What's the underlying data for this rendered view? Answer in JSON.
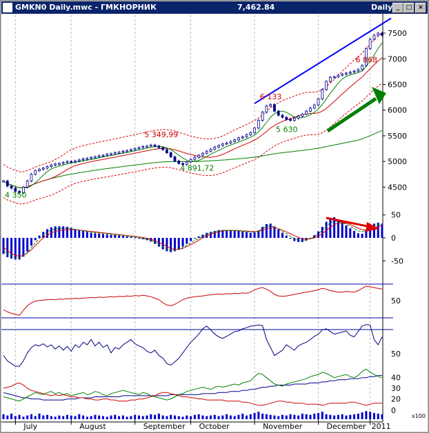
{
  "window": {
    "title": "GMKN0 Daily.mwc - ГМКНОРНИК",
    "last_price": "7,462.84",
    "period": "Daily",
    "buttons": {
      "minimize": "_",
      "maximize": "□",
      "close": "×"
    }
  },
  "colors": {
    "background": "#ffffff",
    "price_bars": "#00008b",
    "trend_line": "#0000ff",
    "ma_fast": "#008000",
    "ma_slow": "#cc0000",
    "band": "#dd0000",
    "ma_long": "#008000",
    "label_high": "#cc0000",
    "label_low": "#008000",
    "arrow_up": "#008000",
    "arrow_down": "#e00000",
    "macd_hist": "#0000cc",
    "volume": "#0000cc"
  },
  "chart_data": {
    "type": "stock",
    "x_ticks": [
      "July",
      "August",
      "September",
      "October",
      "November",
      "December",
      "2011"
    ],
    "price_axis": {
      "ticks": [
        4500,
        5000,
        5500,
        6000,
        6500,
        7000,
        7500
      ],
      "ylim": [
        4250,
        7850
      ]
    },
    "price_labels": [
      {
        "text": "4 350",
        "type": "low"
      },
      {
        "text": "5 349,99",
        "type": "high"
      },
      {
        "text": "4 891,72",
        "type": "low"
      },
      {
        "text": "6 133",
        "type": "high"
      },
      {
        "text": "5 630",
        "type": "low"
      },
      {
        "text": "6 868",
        "type": "high"
      }
    ],
    "price_close": [
      4620,
      4520,
      4480,
      4420,
      4390,
      4500,
      4620,
      4750,
      4820,
      4850,
      4870,
      4900,
      4930,
      4950,
      4960,
      4980,
      5000,
      4990,
      5010,
      5030,
      5050,
      5060,
      5080,
      5090,
      5110,
      5120,
      5140,
      5150,
      5170,
      5180,
      5200,
      5210,
      5230,
      5250,
      5270,
      5290,
      5300,
      5320,
      5300,
      5270,
      5230,
      5170,
      5090,
      5010,
      4960,
      4940,
      4990,
      5040,
      5080,
      5120,
      5160,
      5200,
      5240,
      5280,
      5310,
      5340,
      5360,
      5390,
      5420,
      5460,
      5480,
      5520,
      5560,
      5650,
      5800,
      5960,
      6080,
      6110,
      5980,
      5900,
      5860,
      5820,
      5800,
      5840,
      5880,
      5920,
      5980,
      6040,
      6100,
      6220,
      6400,
      6560,
      6640,
      6650,
      6680,
      6700,
      6720,
      6740,
      6760,
      6790,
      6870,
      7200,
      7380,
      7460,
      7500,
      7460
    ],
    "macd_axis": {
      "ticks": [
        -50,
        0,
        50
      ],
      "ylim": [
        -75,
        75
      ]
    },
    "macd_hist": [
      -35,
      -42,
      -45,
      -47,
      -47,
      -41,
      -30,
      -17,
      -5,
      5,
      13,
      19,
      23,
      25,
      25,
      25,
      24,
      22,
      19,
      17,
      15,
      13,
      11,
      10,
      9,
      8,
      7,
      6,
      6,
      5,
      4,
      3,
      2,
      1,
      -1,
      -3,
      -5,
      -8,
      -13,
      -19,
      -25,
      -29,
      -31,
      -29,
      -25,
      -19,
      -13,
      -7,
      -1,
      3,
      7,
      11,
      13,
      15,
      17,
      17,
      17,
      17,
      16,
      15,
      14,
      13,
      11,
      12,
      16,
      24,
      30,
      31,
      25,
      18,
      11,
      5,
      -2,
      -7,
      -9,
      -9,
      -6,
      -1,
      6,
      14,
      24,
      35,
      42,
      45,
      40,
      33,
      27,
      21,
      15,
      10,
      9,
      16,
      25,
      31,
      33,
      31
    ],
    "macd_signal": [
      -20,
      -28,
      -34,
      -38,
      -40,
      -38,
      -33,
      -26,
      -17,
      -8,
      0,
      6,
      11,
      14,
      16,
      17,
      18,
      18,
      18,
      17,
      16,
      15,
      14,
      13,
      12,
      11,
      10,
      9,
      8,
      7,
      6,
      5,
      4,
      3,
      2,
      1,
      -1,
      -3,
      -6,
      -10,
      -14,
      -19,
      -23,
      -25,
      -25,
      -23,
      -19,
      -15,
      -10,
      -5,
      0,
      4,
      8,
      11,
      13,
      15,
      16,
      16,
      16,
      16,
      15,
      15,
      14,
      14,
      14,
      17,
      20,
      22,
      22,
      20,
      17,
      13,
      9,
      5,
      1,
      -2,
      -3,
      -2,
      0,
      4,
      9,
      16,
      23,
      29,
      32,
      33,
      32,
      29,
      25,
      21,
      18,
      17,
      19,
      22,
      25,
      27
    ],
    "rsi_axis": {
      "ticks": [
        50
      ]
    },
    "rsi": [
      30,
      24,
      20,
      17,
      15,
      28,
      40,
      48,
      52,
      54,
      55,
      56,
      57,
      56,
      58,
      57,
      59,
      58,
      60,
      59,
      60,
      61,
      62,
      61,
      63,
      62,
      63,
      64,
      63,
      65,
      64,
      66,
      65,
      67,
      66,
      68,
      66,
      64,
      60,
      56,
      48,
      42,
      40,
      44,
      50,
      56,
      60,
      62,
      64,
      65,
      66,
      68,
      69,
      70,
      71,
      70,
      72,
      71,
      73,
      72,
      74,
      73,
      76,
      82,
      86,
      88,
      84,
      78,
      70,
      66,
      65,
      66,
      68,
      70,
      72,
      74,
      76,
      78,
      80,
      82,
      86,
      84,
      80,
      78,
      76,
      76,
      78,
      77,
      76,
      80,
      86,
      92,
      90,
      88,
      86,
      84
    ],
    "stoch_axis": {
      "ticks": [
        50
      ]
    },
    "stochastic": [
      40,
      30,
      25,
      20,
      20,
      30,
      45,
      55,
      60,
      58,
      62,
      56,
      60,
      52,
      58,
      50,
      57,
      48,
      60,
      55,
      65,
      60,
      70,
      58,
      65,
      55,
      60,
      45,
      55,
      52,
      60,
      65,
      70,
      62,
      58,
      55,
      48,
      45,
      50,
      40,
      35,
      25,
      22,
      28,
      35,
      45,
      55,
      65,
      72,
      80,
      90,
      95,
      88,
      80,
      75,
      72,
      76,
      80,
      85,
      86,
      90,
      92,
      95,
      96,
      97,
      96,
      70,
      55,
      40,
      45,
      50,
      60,
      55,
      50,
      58,
      62,
      65,
      70,
      76,
      80,
      88,
      90,
      85,
      80,
      82,
      84,
      86,
      78,
      75,
      85,
      95,
      98,
      97,
      70,
      60,
      75
    ],
    "dmi_axis": {
      "ticks": [
        20,
        30,
        40
      ]
    },
    "dmi_adx": [
      26,
      25,
      24,
      23,
      22,
      21,
      21,
      20,
      20,
      20,
      19,
      19,
      19,
      19,
      19,
      19,
      20,
      20,
      20,
      21,
      21,
      21,
      21,
      22,
      22,
      22,
      22,
      22,
      22,
      22,
      23,
      23,
      23,
      23,
      23,
      23,
      23,
      23,
      23,
      23,
      23,
      23,
      24,
      24,
      24,
      24,
      24,
      24,
      24,
      24,
      25,
      25,
      25,
      25,
      26,
      26,
      26,
      27,
      27,
      27,
      28,
      28,
      29,
      29,
      30,
      31,
      31,
      32,
      32,
      33,
      33,
      33,
      33,
      34,
      34,
      34,
      34,
      35,
      35,
      35,
      36,
      36,
      37,
      37,
      38,
      38,
      38,
      39,
      39,
      39,
      40,
      40,
      41,
      41,
      42,
      42
    ],
    "dmi_plus": [
      22,
      21,
      20,
      19,
      18,
      20,
      22,
      24,
      26,
      25,
      24,
      26,
      27,
      25,
      26,
      24,
      25,
      23,
      24,
      25,
      26,
      24,
      25,
      27,
      26,
      24,
      23,
      25,
      26,
      27,
      28,
      27,
      26,
      25,
      24,
      26,
      25,
      23,
      22,
      21,
      20,
      19,
      20,
      22,
      24,
      25,
      27,
      28,
      29,
      30,
      31,
      30,
      29,
      31,
      32,
      31,
      32,
      33,
      34,
      33,
      35,
      36,
      37,
      41,
      44,
      43,
      40,
      37,
      34,
      33,
      32,
      34,
      35,
      36,
      37,
      38,
      39,
      41,
      42,
      43,
      45,
      44,
      42,
      40,
      41,
      42,
      43,
      41,
      40,
      42,
      46,
      48,
      45,
      43,
      41,
      40
    ],
    "dmi_minus": [
      30,
      31,
      32,
      34,
      35,
      33,
      30,
      28,
      27,
      26,
      25,
      24,
      23,
      24,
      23,
      24,
      23,
      22,
      22,
      21,
      21,
      20,
      20,
      19,
      19,
      20,
      20,
      19,
      19,
      18,
      18,
      18,
      19,
      19,
      20,
      20,
      21,
      22,
      23,
      25,
      26,
      26,
      25,
      24,
      23,
      22,
      22,
      21,
      21,
      20,
      20,
      19,
      19,
      19,
      19,
      19,
      18,
      18,
      18,
      18,
      17,
      17,
      16,
      15,
      14,
      14,
      15,
      16,
      17,
      18,
      18,
      17,
      17,
      16,
      16,
      16,
      15,
      15,
      15,
      15,
      14,
      15,
      16,
      16,
      16,
      16,
      16,
      17,
      17,
      16,
      15,
      14,
      15,
      16,
      16,
      16
    ],
    "volume_axis": {
      "ticks": [
        0
      ],
      "label": "x100"
    },
    "volume": [
      8,
      6,
      9,
      5,
      7,
      4,
      6,
      8,
      5,
      9,
      6,
      7,
      5,
      4,
      6,
      5,
      7,
      6,
      5,
      8,
      6,
      4,
      5,
      7,
      6,
      5,
      4,
      6,
      7,
      5,
      6,
      4,
      5,
      7,
      6,
      5,
      6,
      8,
      7,
      9,
      6,
      5,
      7,
      6,
      5,
      4,
      6,
      5,
      7,
      8,
      6,
      5,
      6,
      7,
      5,
      6,
      8,
      6,
      5,
      7,
      9,
      6,
      8,
      10,
      12,
      9,
      8,
      7,
      6,
      5,
      7,
      6,
      8,
      7,
      6,
      9,
      8,
      7,
      9,
      10,
      12,
      8,
      7,
      6,
      7,
      8,
      6,
      7,
      8,
      9,
      11,
      13,
      12,
      10,
      9,
      8
    ]
  }
}
